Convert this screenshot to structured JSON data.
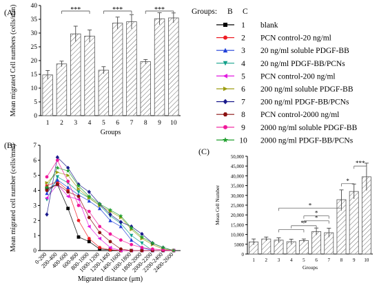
{
  "panel_labels": {
    "a": "(A)",
    "b": "(B)",
    "c": "(C)"
  },
  "legend": {
    "title": "Groups:",
    "col_b": "B",
    "col_c": "C",
    "rows": [
      {
        "num": "1",
        "label": "blank",
        "color": "#000000",
        "marker": "square"
      },
      {
        "num": "2",
        "label": "PCN control-20 ng/ml",
        "color": "#ee1c24",
        "marker": "circle"
      },
      {
        "num": "3",
        "label": "20 ng/ml soluble PDGF-BB",
        "color": "#1f3fd8",
        "marker": "triangle-up"
      },
      {
        "num": "4",
        "label": "20 ng/ml PDGF-BB/PCNs",
        "color": "#12a08a",
        "marker": "triangle-down"
      },
      {
        "num": "5",
        "label": "PCN control-200 ng/ml",
        "color": "#e21ae0",
        "marker": "triangle-left"
      },
      {
        "num": "6",
        "label": "200 ng/ml soluble PDGF-BB",
        "color": "#9c9c10",
        "marker": "triangle-right"
      },
      {
        "num": "7",
        "label": "200 ng/ml PDGF-BB/PCNs",
        "color": "#1a1a8c",
        "marker": "diamond"
      },
      {
        "num": "8",
        "label": "PCN control-2000 ng/ml",
        "color": "#8a1010",
        "marker": "hexagon"
      },
      {
        "num": "9",
        "label": "2000 ng/ml soluble PDGF-BB",
        "color": "#f0189a",
        "marker": "circle"
      },
      {
        "num": "10",
        "label": "2000 ng/ml PDGF-BB/PCNs",
        "color": "#22a030",
        "marker": "star"
      }
    ]
  },
  "chart_data": [
    {
      "id": "A",
      "type": "bar",
      "ylabel": "Mean migrated Cell numbers (cells/mm)",
      "xlabel": "Groups",
      "categories": [
        "1",
        "2",
        "3",
        "4",
        "5",
        "6",
        "7",
        "8",
        "9",
        "10"
      ],
      "values": [
        14.8,
        18.8,
        29.7,
        28.9,
        16.5,
        33.6,
        34.1,
        19.6,
        35.2,
        35.5
      ],
      "errors": [
        1.6,
        1.0,
        2.8,
        2.2,
        1.3,
        2.2,
        2.6,
        0.8,
        2.2,
        1.8
      ],
      "ylim": [
        0,
        40
      ],
      "yticks": [
        "0",
        "5",
        "10",
        "15",
        "20",
        "25",
        "30",
        "35",
        "40"
      ],
      "significance": [
        {
          "from": 2,
          "to": 4,
          "label": "***"
        },
        {
          "from": 5,
          "to": 7,
          "label": "***"
        },
        {
          "from": 8,
          "to": 10,
          "label": "***"
        }
      ]
    },
    {
      "id": "B",
      "type": "line",
      "ylabel": "Mean migrated cell number (cells/mm)",
      "xlabel": "Migrated distance (μm)",
      "categories": [
        "0-200",
        "200-400",
        "400-600",
        "600-800",
        "800-1000",
        "1000-1200",
        "1200-1400",
        "1400-1600",
        "1600-1800",
        "1800-2000",
        "2000-2200",
        "2200-2400",
        "2400-2600"
      ],
      "ylim": [
        0,
        7
      ],
      "yticks": [
        "0",
        "1",
        "2",
        "3",
        "4",
        "5",
        "6",
        "7"
      ],
      "series": [
        {
          "group": 0,
          "values": [
            4.1,
            4.4,
            2.8,
            0.9,
            0.6,
            0.1,
            0.05,
            0.0,
            0.0,
            0.0,
            0.0,
            0.0,
            0.0
          ]
        },
        {
          "group": 1,
          "values": [
            4.3,
            4.6,
            4.0,
            2.0,
            0.8,
            0.2,
            0.05,
            0.0,
            0.0,
            0.0,
            0.0,
            0.0,
            0.0
          ]
        },
        {
          "group": 2,
          "values": [
            3.8,
            4.7,
            4.2,
            3.7,
            3.3,
            2.8,
            2.0,
            1.6,
            0.7,
            0.2,
            0.0,
            0.0,
            0.0
          ]
        },
        {
          "group": 3,
          "values": [
            3.4,
            4.9,
            4.5,
            3.9,
            3.5,
            3.0,
            2.3,
            1.8,
            1.0,
            0.5,
            0.0,
            0.0,
            0.0
          ]
        },
        {
          "group": 4,
          "values": [
            3.5,
            4.4,
            3.6,
            3.4,
            1.6,
            0.8,
            0.2,
            0.0,
            0.0,
            0.0,
            0.0,
            0.0,
            0.0
          ]
        },
        {
          "group": 5,
          "values": [
            4.5,
            5.2,
            5.0,
            4.1,
            3.5,
            3.0,
            2.6,
            2.2,
            1.4,
            0.8,
            0.4,
            0.1,
            0.0
          ]
        },
        {
          "group": 6,
          "values": [
            2.4,
            6.2,
            5.5,
            4.4,
            3.9,
            3.1,
            2.4,
            1.9,
            1.6,
            1.1,
            0.5,
            0.2,
            0.0
          ]
        },
        {
          "group": 7,
          "values": [
            4.0,
            4.4,
            3.9,
            3.6,
            2.2,
            1.2,
            0.6,
            0.1,
            0.0,
            0.0,
            0.0,
            0.0,
            0.0
          ]
        },
        {
          "group": 8,
          "values": [
            4.9,
            6.0,
            4.6,
            3.0,
            2.6,
            1.6,
            1.1,
            0.7,
            0.4,
            0.2,
            0.1,
            0.05,
            0.0
          ]
        },
        {
          "group": 9,
          "values": [
            4.2,
            5.5,
            5.3,
            4.3,
            3.6,
            3.1,
            2.7,
            2.3,
            1.5,
            0.9,
            0.5,
            0.2,
            0.0
          ]
        }
      ]
    },
    {
      "id": "C",
      "type": "bar",
      "ylabel": "Mean Cell Number",
      "xlabel": "Groups",
      "categories": [
        "1",
        "2",
        "3",
        "4",
        "5",
        "6",
        "7",
        "8",
        "9",
        "10"
      ],
      "values": [
        6200,
        7700,
        7100,
        6300,
        6900,
        11500,
        10900,
        27800,
        32000,
        39500
      ],
      "errors": [
        1500,
        1000,
        1200,
        1300,
        800,
        1800,
        2300,
        5000,
        3800,
        7000
      ],
      "ylim": [
        0,
        50000
      ],
      "yticks": [
        "0",
        "5000",
        "10,000",
        "15,000",
        "20,000",
        "25,000",
        "30,000",
        "35,000",
        "40,000",
        "45,000",
        "50,000"
      ],
      "significance": [
        {
          "from": 3,
          "to": 5,
          "y": 12500,
          "label": ""
        },
        {
          "from": 4,
          "to": 6,
          "y": 14500,
          "label": "**"
        },
        {
          "from": 5,
          "to": 7,
          "y": 17000,
          "label": "*"
        },
        {
          "from": 5,
          "to": 7,
          "y": 19500,
          "label": "*"
        },
        {
          "from": 3,
          "to": 8,
          "y": 23500,
          "label": "*"
        },
        {
          "from": 8,
          "to": 9,
          "y": 36000,
          "label": "*"
        },
        {
          "from": 9,
          "to": 10,
          "y": 45000,
          "label": "***"
        }
      ]
    }
  ]
}
